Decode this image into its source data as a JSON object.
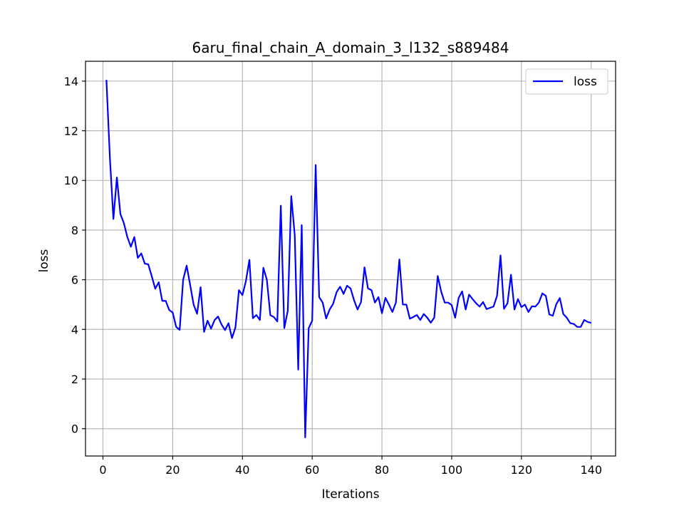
{
  "chart_data": {
    "type": "line",
    "title": "6aru_final_chain_A_domain_3_l132_s889484",
    "xlabel": "Iterations",
    "ylabel": "loss",
    "xlim": [
      -5,
      147
    ],
    "ylim": [
      -1.1,
      14.8
    ],
    "xticks": [
      0,
      20,
      40,
      60,
      80,
      100,
      120,
      140
    ],
    "yticks": [
      0,
      2,
      4,
      6,
      8,
      10,
      12,
      14
    ],
    "grid": true,
    "legend": "top-right",
    "series": [
      {
        "name": "loss",
        "color": "#0000ff",
        "x": [
          1,
          2,
          3,
          4,
          5,
          6,
          7,
          8,
          9,
          10,
          11,
          12,
          13,
          14,
          15,
          16,
          17,
          18,
          19,
          20,
          21,
          22,
          23,
          24,
          25,
          26,
          27,
          28,
          29,
          30,
          31,
          32,
          33,
          34,
          35,
          36,
          37,
          38,
          39,
          40,
          41,
          42,
          43,
          44,
          45,
          46,
          47,
          48,
          49,
          50,
          51,
          52,
          53,
          54,
          55,
          56,
          57,
          58,
          59,
          60,
          61,
          62,
          63,
          64,
          65,
          66,
          67,
          68,
          69,
          70,
          71,
          72,
          73,
          74,
          75,
          76,
          77,
          78,
          79,
          80,
          81,
          82,
          83,
          84,
          85,
          86,
          87,
          88,
          89,
          90,
          91,
          92,
          93,
          94,
          95,
          96,
          97,
          98,
          99,
          100,
          101,
          102,
          103,
          104,
          105,
          106,
          107,
          108,
          109,
          110,
          111,
          112,
          113,
          114,
          115,
          116,
          117,
          118,
          119,
          120,
          121,
          122,
          123,
          124,
          125,
          126,
          127,
          128,
          129,
          130,
          131,
          132,
          133,
          134,
          135,
          136,
          137,
          138,
          139,
          140
        ],
        "values": [
          14.05,
          10.9,
          8.45,
          10.12,
          8.65,
          8.28,
          7.72,
          7.33,
          7.72,
          6.88,
          7.06,
          6.65,
          6.62,
          6.14,
          5.64,
          5.9,
          5.15,
          5.15,
          4.78,
          4.68,
          4.1,
          3.98,
          6.0,
          6.57,
          5.8,
          5.0,
          4.63,
          5.7,
          3.9,
          4.35,
          4.03,
          4.37,
          4.52,
          4.2,
          3.97,
          4.25,
          3.65,
          4.08,
          5.58,
          5.38,
          5.95,
          6.8,
          4.45,
          4.58,
          4.38,
          6.48,
          6.0,
          4.57,
          4.5,
          4.32,
          8.98,
          4.05,
          4.75,
          9.37,
          7.8,
          2.38,
          8.2,
          -0.35,
          4.05,
          4.35,
          10.62,
          5.3,
          5.08,
          4.44,
          4.8,
          5.03,
          5.5,
          5.72,
          5.43,
          5.76,
          5.65,
          5.18,
          4.8,
          5.1,
          6.5,
          5.65,
          5.58,
          5.08,
          5.3,
          4.65,
          5.27,
          5.0,
          4.7,
          5.08,
          6.82,
          5.0,
          5.0,
          4.43,
          4.5,
          4.58,
          4.38,
          4.62,
          4.47,
          4.27,
          4.47,
          6.15,
          5.52,
          5.08,
          5.08,
          4.98,
          4.47,
          5.27,
          5.53,
          4.8,
          5.4,
          5.22,
          5.05,
          4.92,
          5.1,
          4.82,
          4.87,
          4.92,
          5.35,
          6.98,
          4.83,
          5.05,
          6.2,
          4.8,
          5.22,
          4.9,
          5.0,
          4.7,
          4.93,
          4.92,
          5.08,
          5.45,
          5.35,
          4.6,
          4.55,
          5.02,
          5.26,
          4.62,
          4.47,
          4.25,
          4.22,
          4.1,
          4.1,
          4.38,
          4.3,
          4.26
        ]
      }
    ]
  }
}
